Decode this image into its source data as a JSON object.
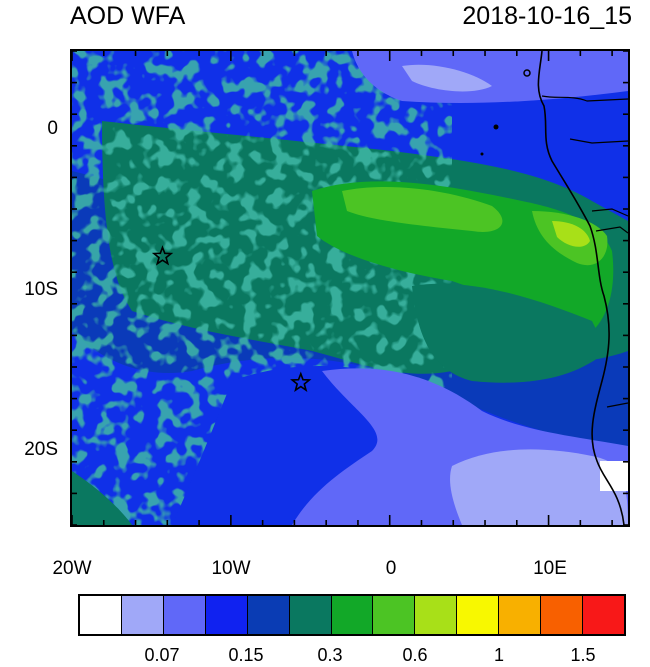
{
  "header": {
    "title": "AOD WFA",
    "datetime": "2018-10-16_15"
  },
  "map": {
    "lon_range": [
      -20,
      15
    ],
    "lat_range": [
      -25,
      5
    ],
    "lat_labels": [
      {
        "lat": 0,
        "text": "0"
      },
      {
        "lat": -10,
        "text": "10S"
      },
      {
        "lat": -20,
        "text": "20S"
      }
    ],
    "lon_labels": [
      {
        "lon": -20,
        "text": "20W"
      },
      {
        "lon": -10,
        "text": "10W"
      },
      {
        "lon": 0,
        "text": "0"
      },
      {
        "lon": 10,
        "text": "10E"
      }
    ],
    "markers": [
      {
        "name": "star-marker-north",
        "lon": -14.3,
        "lat": -8.0
      },
      {
        "name": "star-marker-south",
        "lon": -5.6,
        "lat": -16.0
      }
    ]
  },
  "colorbar": {
    "colors": [
      "#ffffff",
      "#a0a8f8",
      "#6068f8",
      "#1022f0",
      "#0a3cb4",
      "#0a7860",
      "#12a828",
      "#4cc424",
      "#a8e018",
      "#f8f800",
      "#f8b000",
      "#f86000",
      "#f81818"
    ],
    "labels": [
      {
        "after_box": 2,
        "text": "0.07"
      },
      {
        "after_box": 4,
        "text": "0.15"
      },
      {
        "after_box": 6,
        "text": "0.3"
      },
      {
        "after_box": 8,
        "text": "0.6"
      },
      {
        "after_box": 10,
        "text": "1"
      },
      {
        "after_box": 12,
        "text": "1.5"
      }
    ]
  }
}
